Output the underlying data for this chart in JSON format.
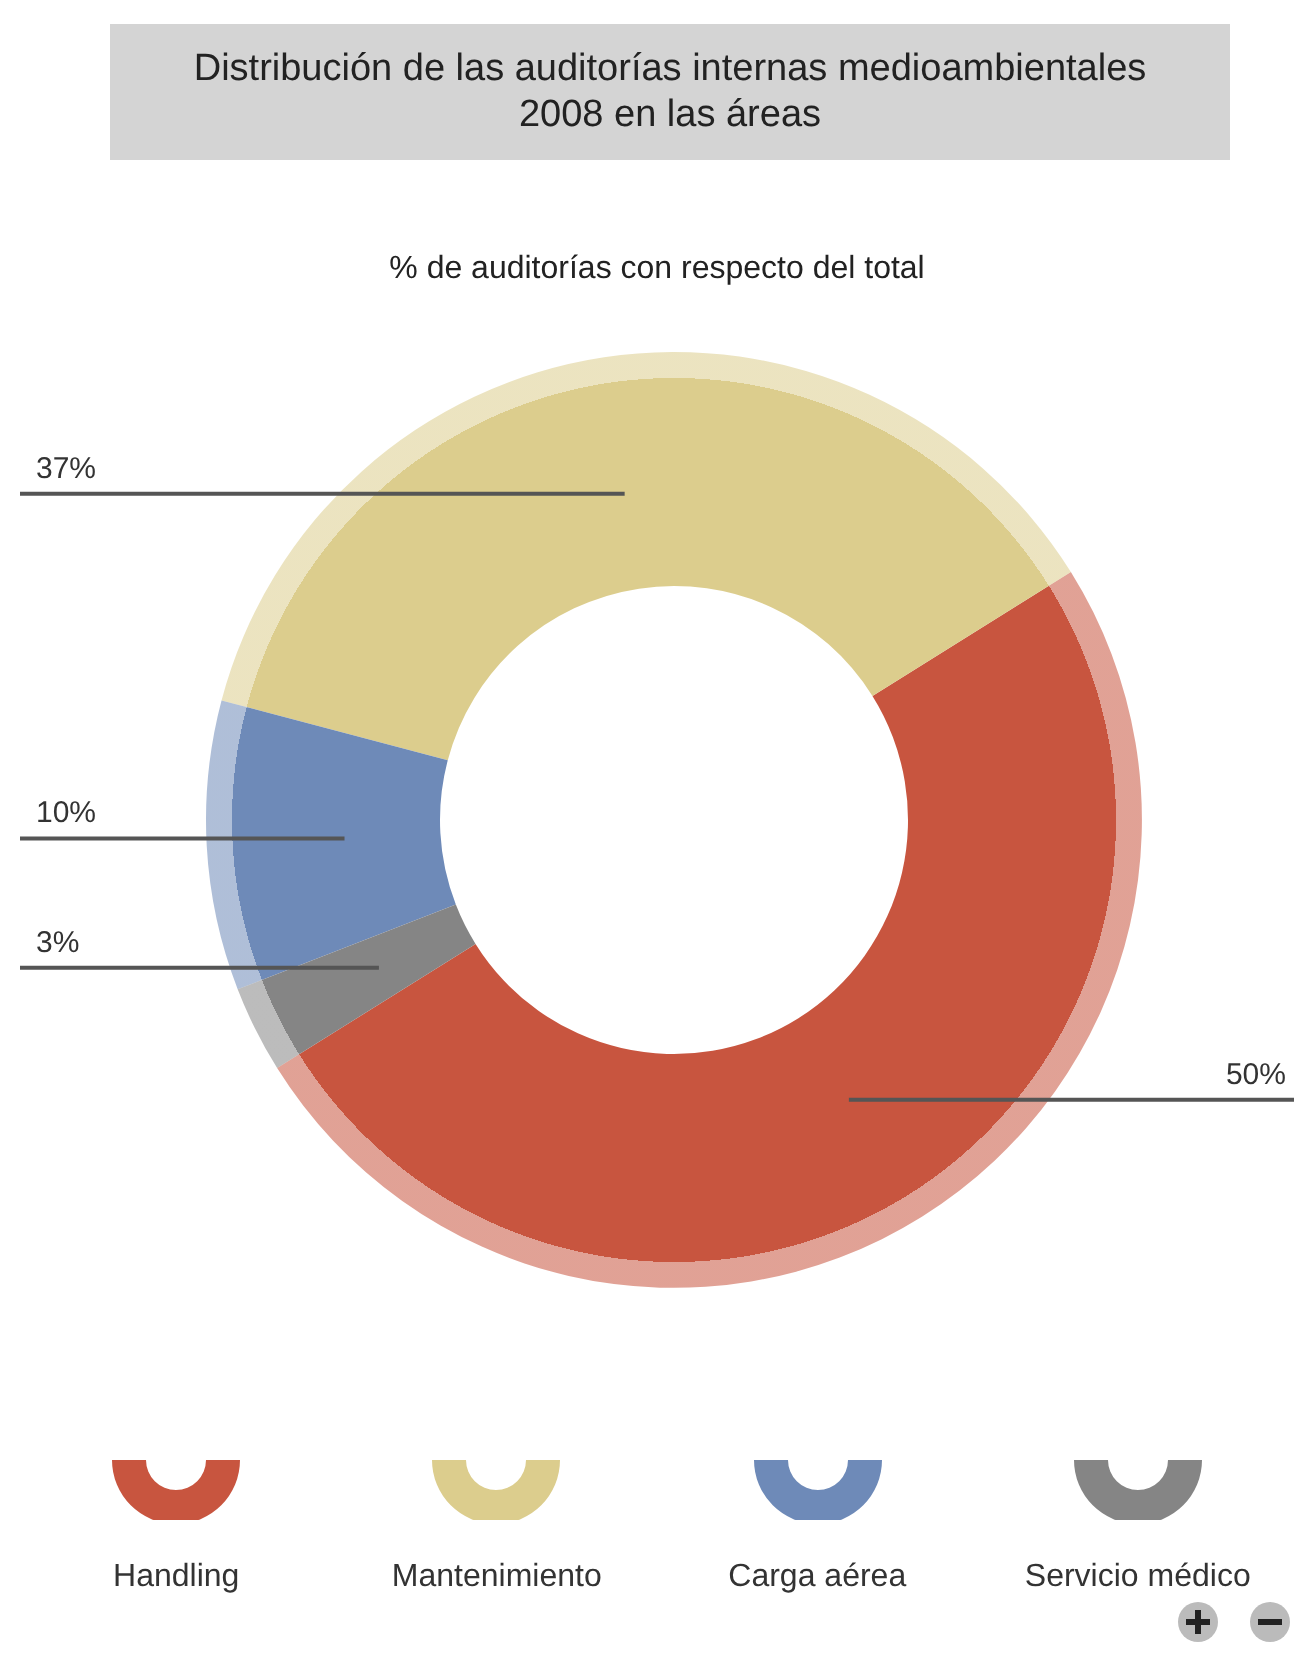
{
  "chart_data": {
    "type": "donut",
    "title": "Distribución de las auditorías internas medioambientales 2008 en las áreas",
    "subtitle": "% de auditorías con respecto del total",
    "categories": [
      "Handling",
      "Mantenimiento",
      "Carga aérea",
      "Servicio médico"
    ],
    "values": [
      50,
      37,
      10,
      3
    ],
    "value_labels": [
      "50%",
      "37%",
      "10%",
      "3%"
    ],
    "colors": [
      "#c8553f",
      "#dccd8d",
      "#6e8ab8",
      "#858585"
    ],
    "legend": "bottom"
  }
}
